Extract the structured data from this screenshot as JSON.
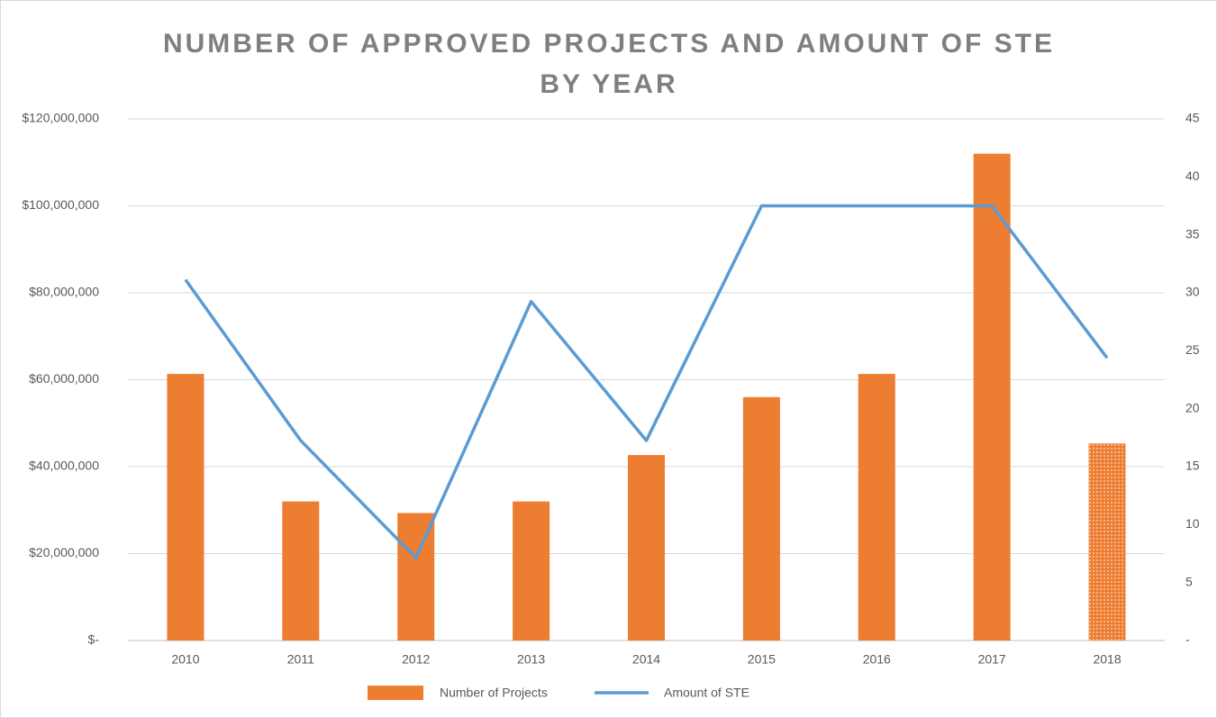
{
  "chart_data": {
    "type": "bar_line",
    "title": "NUMBER OF APPROVED PROJECTS AND AMOUNT OF STE BY YEAR",
    "categories": [
      "2010",
      "2011",
      "2012",
      "2013",
      "2014",
      "2015",
      "2016",
      "2017",
      "2018"
    ],
    "series": [
      {
        "name": "Number of Projects",
        "type": "bar",
        "color": "#ed7d31",
        "axis": "y2",
        "values": [
          23,
          12,
          11,
          12,
          16,
          21,
          23,
          42,
          17
        ]
      },
      {
        "name": "Amount of STE",
        "type": "line",
        "color": "#5b9bd5",
        "axis": "y",
        "values": [
          83000000,
          46000000,
          19000000,
          78000000,
          46000000,
          100000000,
          100000000,
          100000000,
          65000000
        ]
      }
    ],
    "ylim": [
      0,
      120000000
    ],
    "yticks": [
      {
        "value": 0,
        "label": "$-"
      },
      {
        "value": 20000000,
        "label": "$20,000,000"
      },
      {
        "value": 40000000,
        "label": "$40,000,000"
      },
      {
        "value": 60000000,
        "label": "$60,000,000"
      },
      {
        "value": 80000000,
        "label": "$80,000,000"
      },
      {
        "value": 100000000,
        "label": "$100,000,000"
      },
      {
        "value": 120000000,
        "label": "$120,000,000"
      }
    ],
    "y2lim": [
      0,
      45
    ],
    "y2ticks": [
      {
        "value": 0,
        "label": "-"
      },
      5,
      10,
      15,
      20,
      25,
      30,
      35,
      40,
      45
    ],
    "grid": true,
    "legend": "bottom"
  }
}
